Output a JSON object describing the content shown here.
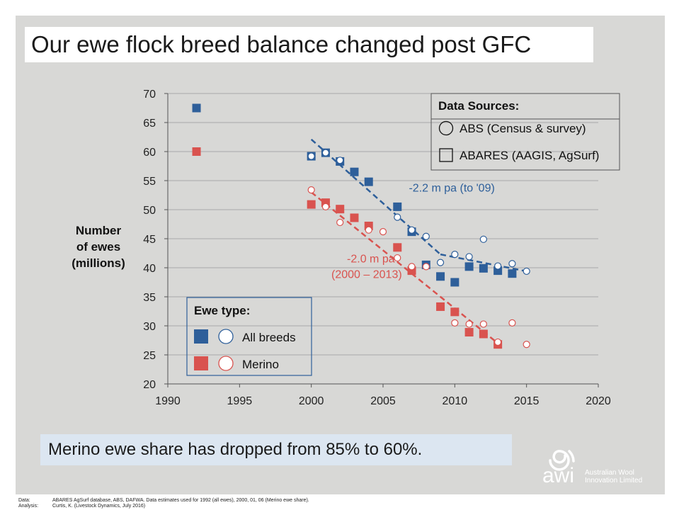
{
  "title": "Our ewe flock breed balance changed post GFC",
  "subtitle_box": "Merino ewe share has dropped from 85% to 60%.",
  "footer": {
    "data_label": "Data:",
    "data_text": "ABARES AgSurf database, ABS, DAFWA.  Data estimates used for 1992 (all ewes), 2000, 01, 06 (Merino ewe share).",
    "analysis_label": "Analysis:",
    "analysis_text": "Curtis, K. (Livestock Dynamics, July 2016)"
  },
  "logo": {
    "brand": "awi",
    "line1": "Australian Wool",
    "line2": "Innovation Limited"
  },
  "colors": {
    "all_breeds": "#2e5f9a",
    "merino": "#d9534f",
    "grid": "#9a9a9a"
  },
  "chart_data": {
    "type": "scatter",
    "title": "",
    "ylabel": "Number\nof ewes\n(millions)",
    "xlabel": "",
    "xlim": [
      1990,
      2020
    ],
    "ylim": [
      20,
      70
    ],
    "x_ticks": [
      1990,
      1995,
      2000,
      2005,
      2010,
      2015,
      2020
    ],
    "y_ticks": [
      20,
      25,
      30,
      35,
      40,
      45,
      50,
      55,
      60,
      65,
      70
    ],
    "grid": "horizontal",
    "legend_sources": {
      "title": "Data Sources:",
      "items": [
        {
          "marker": "circle-open",
          "label": "ABS (Census & survey)"
        },
        {
          "marker": "square-open",
          "label": "ABARES (AAGIS, AgSurf)"
        }
      ],
      "placement": "top-right"
    },
    "legend_types": {
      "title": "Ewe type:",
      "items": [
        {
          "series": "all_breeds",
          "label": "All breeds"
        },
        {
          "series": "merino",
          "label": "Merino"
        }
      ],
      "placement": "bottom-left"
    },
    "series": [
      {
        "name": "All breeds",
        "key": "all_breeds",
        "source": "ABARES",
        "marker": "square",
        "points": [
          [
            1992,
            67.5
          ],
          [
            2000,
            59.2
          ],
          [
            2001,
            59.8
          ],
          [
            2002,
            58.3
          ],
          [
            2003,
            56.5
          ],
          [
            2004,
            54.8
          ],
          [
            2006,
            50.5
          ],
          [
            2007,
            46.2
          ],
          [
            2008,
            40.5
          ],
          [
            2009,
            38.5
          ],
          [
            2010,
            37.5
          ],
          [
            2011,
            40.2
          ],
          [
            2012,
            39.9
          ],
          [
            2013,
            39.5
          ],
          [
            2014,
            39.0
          ]
        ]
      },
      {
        "name": "All breeds",
        "key": "all_breeds",
        "source": "ABS",
        "marker": "circle",
        "points": [
          [
            2000,
            59.2
          ],
          [
            2001,
            59.8
          ],
          [
            2002,
            58.5
          ],
          [
            2006,
            48.7
          ],
          [
            2007,
            46.5
          ],
          [
            2008,
            45.4
          ],
          [
            2009,
            40.9
          ],
          [
            2010,
            42.3
          ],
          [
            2011,
            41.9
          ],
          [
            2012,
            44.9
          ],
          [
            2013,
            40.3
          ],
          [
            2014,
            40.7
          ],
          [
            2015,
            39.4
          ]
        ]
      },
      {
        "name": "Merino",
        "key": "merino",
        "source": "ABARES",
        "marker": "square",
        "points": [
          [
            1992,
            60.0
          ],
          [
            2000,
            50.9
          ],
          [
            2001,
            51.2
          ],
          [
            2002,
            50.1
          ],
          [
            2003,
            48.6
          ],
          [
            2004,
            47.2
          ],
          [
            2006,
            43.5
          ],
          [
            2007,
            39.5
          ],
          [
            2009,
            33.3
          ],
          [
            2010,
            32.4
          ],
          [
            2011,
            28.9
          ],
          [
            2012,
            28.6
          ],
          [
            2013,
            26.8
          ]
        ]
      },
      {
        "name": "Merino",
        "key": "merino",
        "source": "ABS",
        "marker": "circle",
        "points": [
          [
            2000,
            53.4
          ],
          [
            2001,
            50.5
          ],
          [
            2002,
            47.8
          ],
          [
            2004,
            46.5
          ],
          [
            2005,
            46.2
          ],
          [
            2006,
            41.7
          ],
          [
            2007,
            40.2
          ],
          [
            2008,
            40.2
          ],
          [
            2010,
            30.5
          ],
          [
            2011,
            30.3
          ],
          [
            2012,
            30.3
          ],
          [
            2013,
            27.2
          ],
          [
            2014,
            30.5
          ],
          [
            2015,
            26.8
          ]
        ]
      }
    ],
    "trends": [
      {
        "key": "all_breeds",
        "from": [
          2000,
          62.1
        ],
        "to": [
          2009,
          42.3
        ],
        "label": "-2.2 m pa (to '09)",
        "label_at": [
          2006.8,
          53.1
        ]
      },
      {
        "key": "all_breeds",
        "from": [
          2009,
          42.3
        ],
        "to": [
          2015,
          39.4
        ],
        "label": "",
        "label_at": null
      },
      {
        "key": "merino",
        "from": [
          2000,
          53.0
        ],
        "to": [
          2013,
          27.0
        ],
        "label_lines": [
          "-2.0 m pa",
          "(2000 – 2013)"
        ],
        "label_at": [
          2001.4,
          40.9
        ]
      }
    ]
  }
}
